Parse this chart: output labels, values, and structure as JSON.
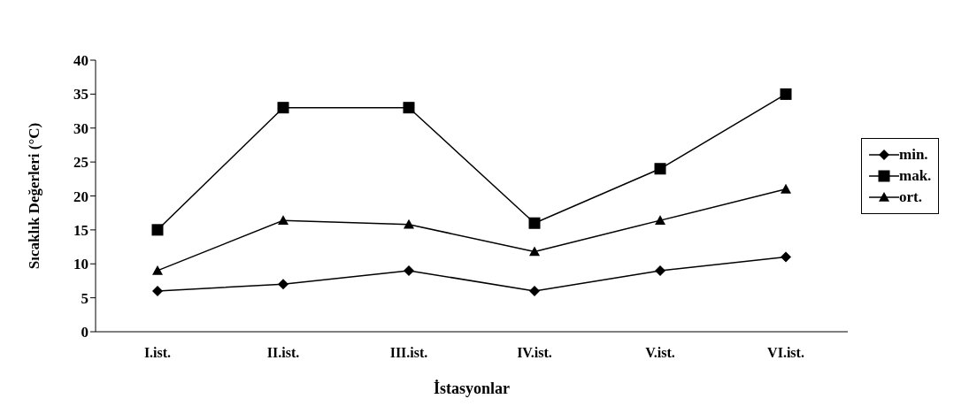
{
  "chart_data": {
    "type": "line",
    "xlabel": "İstasyonlar",
    "ylabel": "Sıcaklık Değerleri (°C)",
    "categories": [
      "I.ist.",
      "II.ist.",
      "III.ist.",
      "IV.ist.",
      "V.ist.",
      "VI.ist."
    ],
    "series": [
      {
        "name": "min.",
        "color": "#000000",
        "marker": "diamond",
        "values": [
          6,
          7,
          9,
          6,
          9,
          11
        ]
      },
      {
        "name": "mak.",
        "color": "#000000",
        "marker": "square",
        "values": [
          15,
          33,
          33,
          16,
          24,
          35
        ]
      },
      {
        "name": "ort.",
        "color": "#000000",
        "marker": "triangle",
        "values": [
          9,
          16.4,
          15.8,
          11.8,
          16.4,
          21
        ]
      }
    ],
    "ylim": [
      0,
      40
    ],
    "yticks": [
      0,
      5,
      10,
      15,
      20,
      25,
      30,
      35,
      40
    ],
    "grid": false,
    "legend": "right",
    "line_style": "solid"
  }
}
